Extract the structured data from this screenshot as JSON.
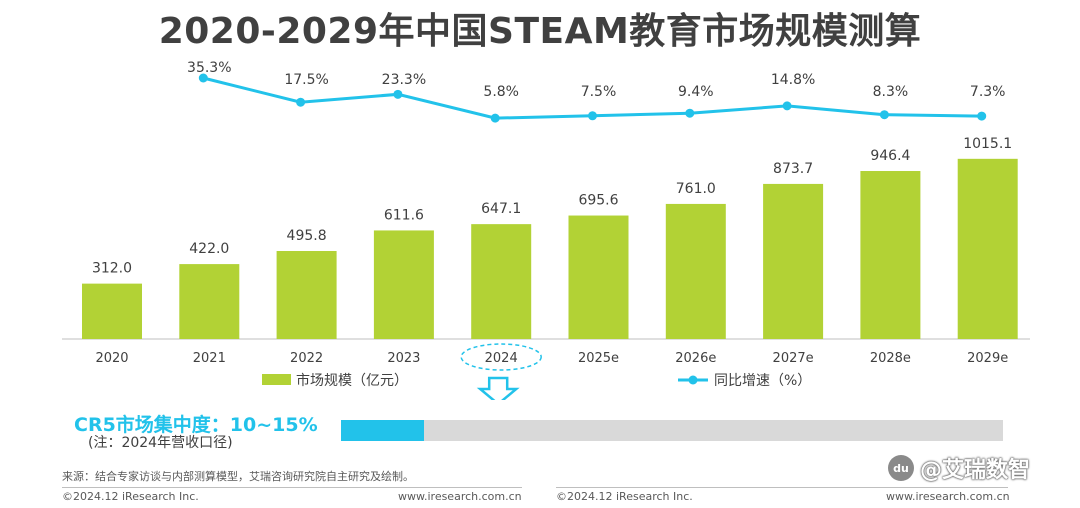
{
  "title": "2020-2029年中国STEAM教育市场规模测算",
  "chart_data": {
    "type": "bar",
    "categories": [
      "2020",
      "2021",
      "2022",
      "2023",
      "2024",
      "2025e",
      "2026e",
      "2027e",
      "2028e",
      "2029e"
    ],
    "series": [
      {
        "name": "市场规模（亿元）",
        "type": "bar",
        "values": [
          312.0,
          422.0,
          495.8,
          611.6,
          647.1,
          695.6,
          761.0,
          873.7,
          946.4,
          1015.1
        ],
        "labels": [
          "312.0",
          "422.0",
          "495.8",
          "611.6",
          "647.1",
          "695.6",
          "761.0",
          "873.7",
          "946.4",
          "1015.1"
        ],
        "color": "#b2d235"
      },
      {
        "name": "同比增速（%）",
        "type": "line",
        "values": [
          null,
          35.3,
          17.5,
          23.3,
          5.8,
          7.5,
          9.4,
          14.8,
          8.3,
          7.3
        ],
        "labels": [
          "",
          "35.3%",
          "17.5%",
          "23.3%",
          "5.8%",
          "7.5%",
          "9.4%",
          "14.8%",
          "8.3%",
          "7.3%"
        ],
        "color": "#22c2ea"
      }
    ],
    "highlight_category": "2024",
    "legend_position": "bottom"
  },
  "cr5": {
    "label": "CR5市场集中度：10~15%",
    "note": "(注：2024年营收口径)",
    "fill_fraction": 0.125,
    "fill_color": "#22c2ea",
    "track_color": "#d9d9d9"
  },
  "source": "来源：结合专家访谈与内部测算模型，艾瑞咨询研究院自主研究及绘制。",
  "footer": {
    "left_copyright": "©2024.12 iResearch Inc.",
    "left_url": "www.iresearch.com.cn",
    "right_copyright": "©2024.12 iResearch Inc.",
    "right_url": "www.iresearch.com.cn"
  },
  "watermark": {
    "logo_text": "du",
    "text": "@艾瑞数智"
  }
}
